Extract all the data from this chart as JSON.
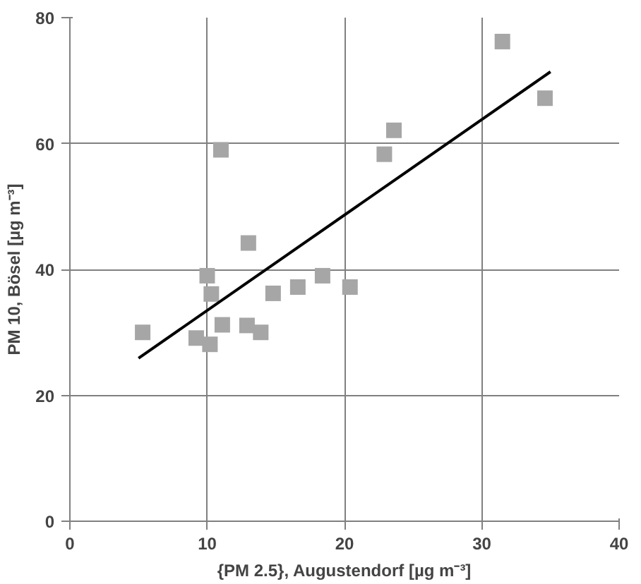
{
  "chart_data": {
    "type": "scatter",
    "xlabel": "{PM 2.5}, Augustendorf [µg m⁻³]",
    "ylabel": "PM 10, Bösel [µg m⁻³]",
    "xlim": [
      0,
      40
    ],
    "xticks": [
      0,
      10,
      20,
      30,
      40
    ],
    "ylim": [
      0,
      80
    ],
    "yticks": [
      0,
      20,
      40,
      60,
      80
    ],
    "grid": true,
    "series": [
      {
        "marker": "square",
        "color": "#a6a6a6",
        "x": [
          5.3,
          9.2,
          10.0,
          10.3,
          10.2,
          11.1,
          11.0,
          12.9,
          13.0,
          13.9,
          14.8,
          16.6,
          18.4,
          20.4,
          22.9,
          23.6,
          31.5,
          34.6
        ],
        "values": [
          30.0,
          29.1,
          39.0,
          36.1,
          28.1,
          31.2,
          59.0,
          31.1,
          44.2,
          30.0,
          36.2,
          37.2,
          39.0,
          37.2,
          58.3,
          62.1,
          76.2,
          67.2
        ]
      },
      {
        "type": "line",
        "marker": "none",
        "color": "#000000",
        "x": [
          5.0,
          35.0
        ],
        "values": [
          25.9,
          71.4
        ]
      }
    ]
  }
}
